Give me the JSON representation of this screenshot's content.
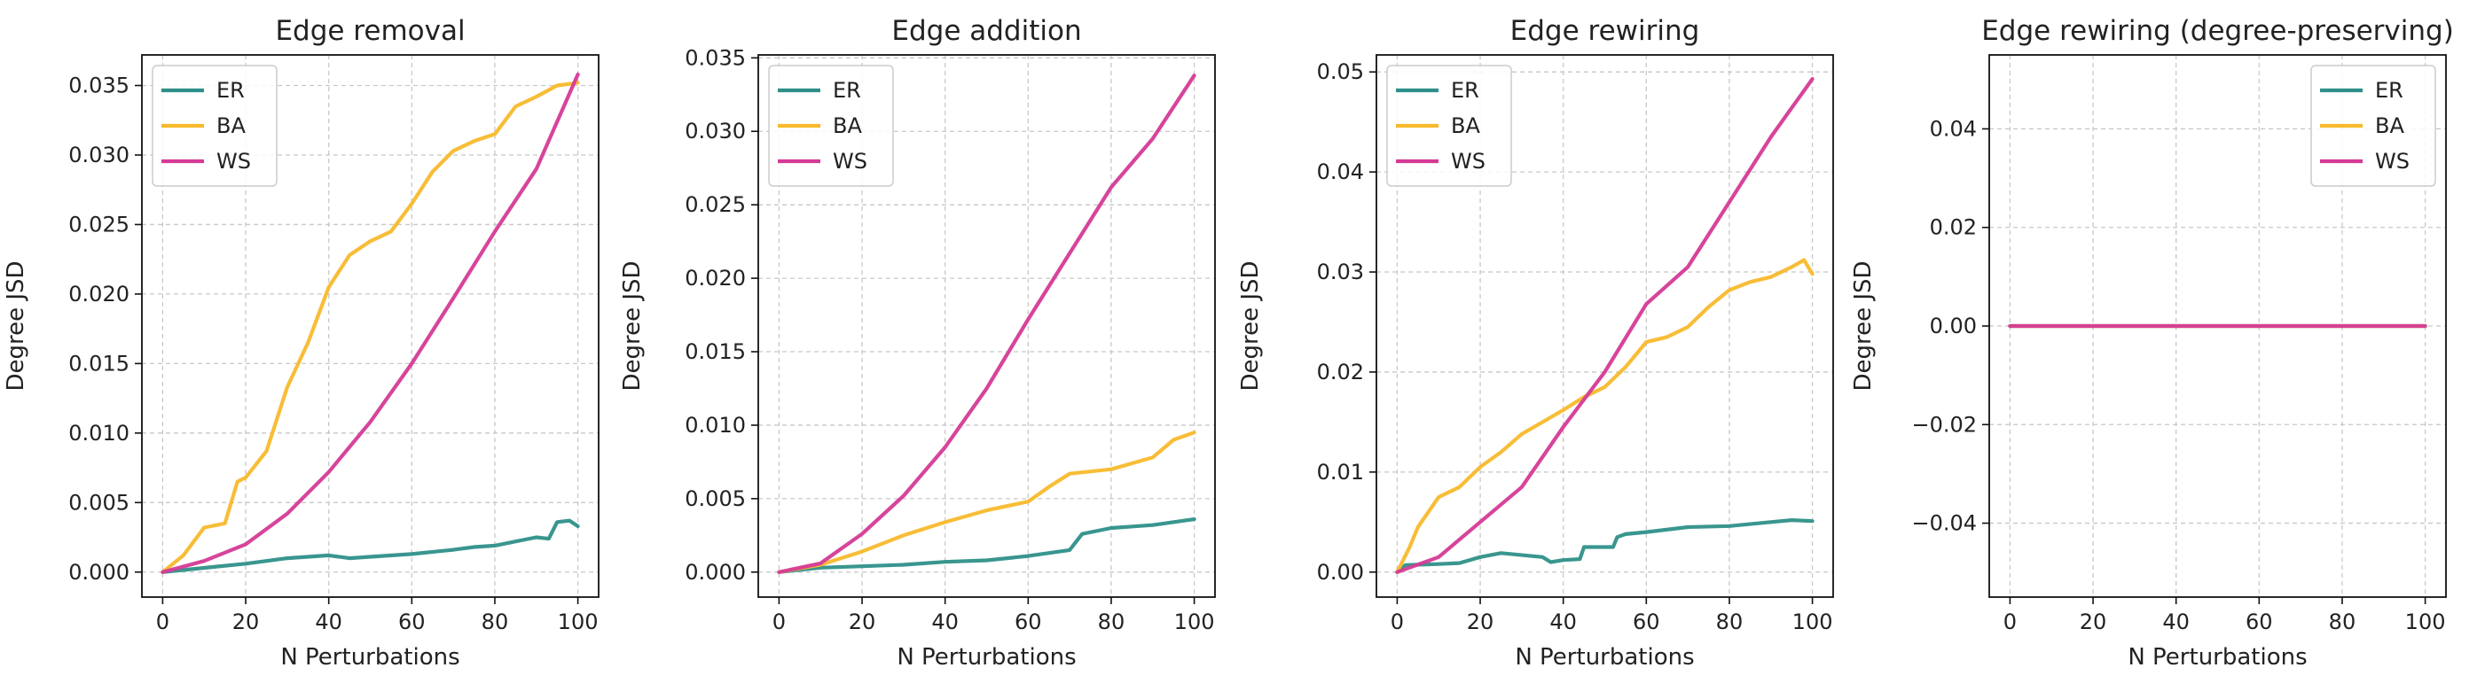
{
  "colors": {
    "ER": "#2e9089",
    "BA": "#f8b92c",
    "WS": "#d53a96"
  },
  "chart_data": [
    {
      "type": "line",
      "title": "Edge removal",
      "xlabel": "N Perturbations",
      "ylabel": "Degree JSD",
      "xlim": [
        -5,
        105
      ],
      "ylim": [
        -0.0018,
        0.0372
      ],
      "xticks": [
        0,
        20,
        40,
        60,
        80,
        100
      ],
      "xtick_labels": [
        "0",
        "20",
        "40",
        "60",
        "80",
        "100"
      ],
      "yticks": [
        0,
        0.005,
        0.01,
        0.015,
        0.02,
        0.025,
        0.03,
        0.035
      ],
      "ytick_labels": [
        "0.000",
        "0.005",
        "0.010",
        "0.015",
        "0.020",
        "0.025",
        "0.030",
        "0.035"
      ],
      "grid": true,
      "legend_position": "top-left",
      "series": [
        {
          "name": "ER",
          "x": [
            0,
            10,
            20,
            30,
            40,
            45,
            50,
            60,
            70,
            75,
            80,
            85,
            90,
            93,
            95,
            98,
            100
          ],
          "y": [
            0,
            0.0003,
            0.0006,
            0.001,
            0.0012,
            0.001,
            0.0011,
            0.0013,
            0.0016,
            0.0018,
            0.0019,
            0.0022,
            0.0025,
            0.0024,
            0.0036,
            0.0037,
            0.0033
          ]
        },
        {
          "name": "BA",
          "x": [
            0,
            5,
            10,
            15,
            18,
            20,
            25,
            30,
            35,
            40,
            45,
            50,
            55,
            60,
            65,
            70,
            75,
            80,
            85,
            90,
            95,
            100
          ],
          "y": [
            0,
            0.0012,
            0.0032,
            0.0035,
            0.0065,
            0.0068,
            0.0087,
            0.0133,
            0.0165,
            0.0205,
            0.0228,
            0.0238,
            0.0245,
            0.0265,
            0.0288,
            0.0303,
            0.031,
            0.0315,
            0.0335,
            0.0342,
            0.035,
            0.0352
          ]
        },
        {
          "name": "WS",
          "x": [
            0,
            10,
            20,
            30,
            40,
            50,
            60,
            70,
            80,
            90,
            100
          ],
          "y": [
            0,
            0.0008,
            0.002,
            0.0042,
            0.0072,
            0.0108,
            0.015,
            0.0197,
            0.0245,
            0.029,
            0.0358
          ]
        }
      ]
    },
    {
      "type": "line",
      "title": "Edge addition",
      "xlabel": "N Perturbations",
      "ylabel": "Degree JSD",
      "xlim": [
        -5,
        105
      ],
      "ylim": [
        -0.0017,
        0.0352
      ],
      "xticks": [
        0,
        20,
        40,
        60,
        80,
        100
      ],
      "xtick_labels": [
        "0",
        "20",
        "40",
        "60",
        "80",
        "100"
      ],
      "yticks": [
        0,
        0.005,
        0.01,
        0.015,
        0.02,
        0.025,
        0.03,
        0.035
      ],
      "ytick_labels": [
        "0.000",
        "0.005",
        "0.010",
        "0.015",
        "0.020",
        "0.025",
        "0.030",
        "0.035"
      ],
      "grid": true,
      "legend_position": "top-left",
      "series": [
        {
          "name": "ER",
          "x": [
            0,
            10,
            20,
            30,
            40,
            50,
            60,
            70,
            73,
            80,
            90,
            100
          ],
          "y": [
            0,
            0.0003,
            0.0004,
            0.0005,
            0.0007,
            0.0008,
            0.0011,
            0.0015,
            0.0026,
            0.003,
            0.0032,
            0.0036
          ]
        },
        {
          "name": "BA",
          "x": [
            0,
            10,
            20,
            30,
            40,
            50,
            60,
            65,
            70,
            80,
            90,
            95,
            100
          ],
          "y": [
            0,
            0.0005,
            0.0014,
            0.0025,
            0.0034,
            0.0042,
            0.0048,
            0.0058,
            0.0067,
            0.007,
            0.0078,
            0.009,
            0.0095
          ]
        },
        {
          "name": "WS",
          "x": [
            0,
            10,
            20,
            30,
            40,
            50,
            60,
            70,
            80,
            90,
            100
          ],
          "y": [
            0,
            0.0006,
            0.0026,
            0.0052,
            0.0085,
            0.0125,
            0.0172,
            0.0217,
            0.0262,
            0.0295,
            0.0338
          ]
        }
      ]
    },
    {
      "type": "line",
      "title": "Edge rewiring",
      "xlabel": "N Perturbations",
      "ylabel": "Degree JSD",
      "xlim": [
        -5,
        105
      ],
      "ylim": [
        -0.0025,
        0.0517
      ],
      "xticks": [
        0,
        20,
        40,
        60,
        80,
        100
      ],
      "xtick_labels": [
        "0",
        "20",
        "40",
        "60",
        "80",
        "100"
      ],
      "yticks": [
        0,
        0.01,
        0.02,
        0.03,
        0.04,
        0.05
      ],
      "ytick_labels": [
        "0.00",
        "0.01",
        "0.02",
        "0.03",
        "0.04",
        "0.05"
      ],
      "grid": true,
      "legend_position": "top-left",
      "series": [
        {
          "name": "ER",
          "x": [
            0,
            2,
            10,
            15,
            20,
            25,
            35,
            37,
            40,
            44,
            45,
            52,
            53,
            55,
            60,
            70,
            80,
            90,
            95,
            100
          ],
          "y": [
            0,
            0.0007,
            0.0008,
            0.0009,
            0.0015,
            0.0019,
            0.0015,
            0.001,
            0.0012,
            0.0013,
            0.0025,
            0.0025,
            0.0035,
            0.0038,
            0.004,
            0.0045,
            0.0046,
            0.005,
            0.0052,
            0.0051
          ]
        },
        {
          "name": "BA",
          "x": [
            0,
            3,
            5,
            10,
            15,
            20,
            25,
            30,
            35,
            40,
            45,
            50,
            55,
            60,
            65,
            70,
            75,
            80,
            85,
            90,
            95,
            98,
            100
          ],
          "y": [
            0,
            0.0025,
            0.0045,
            0.0075,
            0.0085,
            0.0105,
            0.012,
            0.0138,
            0.015,
            0.0162,
            0.0175,
            0.0185,
            0.0205,
            0.023,
            0.0235,
            0.0245,
            0.0265,
            0.0282,
            0.029,
            0.0295,
            0.0305,
            0.0312,
            0.0298
          ]
        },
        {
          "name": "WS",
          "x": [
            0,
            10,
            20,
            30,
            40,
            50,
            60,
            70,
            80,
            90,
            100
          ],
          "y": [
            0,
            0.0015,
            0.005,
            0.0085,
            0.0145,
            0.02,
            0.0268,
            0.0305,
            0.037,
            0.0435,
            0.0493
          ]
        }
      ]
    },
    {
      "type": "line",
      "title": "Edge rewiring (degree-preserving)",
      "xlabel": "N Perturbations",
      "ylabel": "Degree JSD",
      "xlim": [
        -5,
        105
      ],
      "ylim": [
        -0.055,
        0.055
      ],
      "xticks": [
        0,
        20,
        40,
        60,
        80,
        100
      ],
      "xtick_labels": [
        "0",
        "20",
        "40",
        "60",
        "80",
        "100"
      ],
      "yticks": [
        -0.04,
        -0.02,
        0,
        0.02,
        0.04
      ],
      "ytick_labels": [
        "−0.04",
        "−0.02",
        "0.00",
        "0.02",
        "0.04"
      ],
      "grid": true,
      "legend_position": "top-right",
      "series": [
        {
          "name": "ER",
          "x": [
            0,
            100
          ],
          "y": [
            0,
            0
          ]
        },
        {
          "name": "BA",
          "x": [
            0,
            100
          ],
          "y": [
            0,
            0
          ]
        },
        {
          "name": "WS",
          "x": [
            0,
            100
          ],
          "y": [
            0,
            0
          ]
        }
      ]
    }
  ]
}
